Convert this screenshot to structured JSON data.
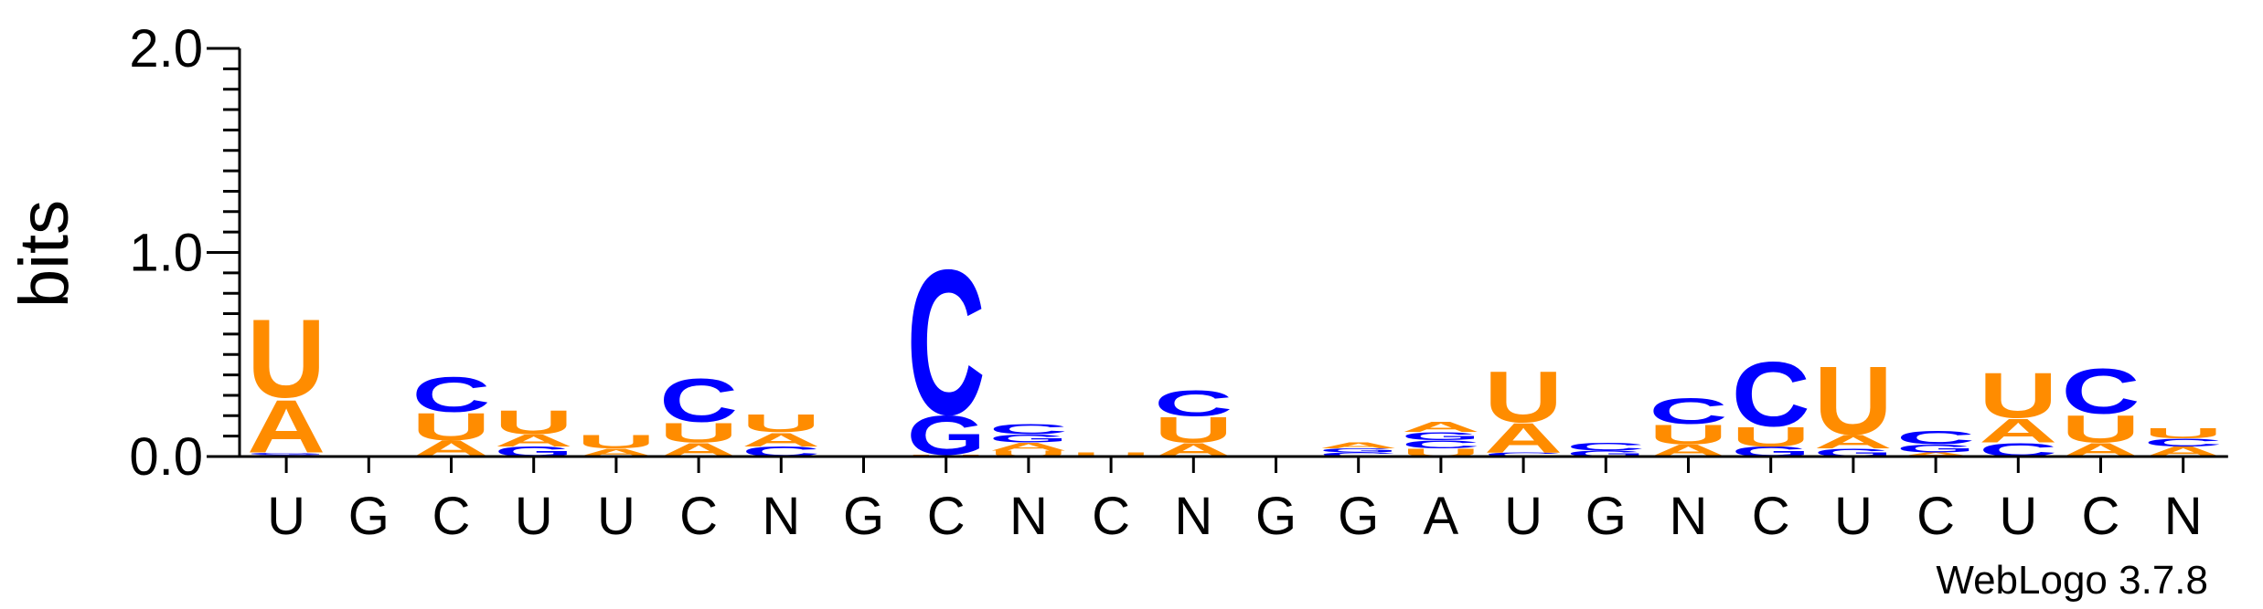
{
  "chart_data": {
    "type": "sequence-logo",
    "ylabel": "bits",
    "ylim": [
      0,
      2.0
    ],
    "yticks": [
      {
        "value": 0.0,
        "label": "0.0"
      },
      {
        "value": 1.0,
        "label": "1.0"
      },
      {
        "value": 2.0,
        "label": "2.0"
      }
    ],
    "colors": {
      "U": "#ff8c00",
      "A": "#ff8c00",
      "C": "#0000ff",
      "G": "#0000ff"
    },
    "credit": "WebLogo 3.7.8",
    "positions": [
      {
        "label": "U",
        "stack": [
          {
            "l": "C",
            "h": 0.01
          },
          {
            "l": "G",
            "h": 0.01
          },
          {
            "l": "A",
            "h": 0.27
          },
          {
            "l": "U",
            "h": 0.4
          }
        ]
      },
      {
        "label": "G",
        "stack": []
      },
      {
        "label": "C",
        "stack": [
          {
            "l": "A",
            "h": 0.08
          },
          {
            "l": "U",
            "h": 0.14
          },
          {
            "l": "C",
            "h": 0.18
          }
        ]
      },
      {
        "label": "U",
        "stack": [
          {
            "l": "G",
            "h": 0.05
          },
          {
            "l": "A",
            "h": 0.06
          },
          {
            "l": "U",
            "h": 0.12
          }
        ]
      },
      {
        "label": "U",
        "stack": [
          {
            "l": "A",
            "h": 0.04
          },
          {
            "l": "U",
            "h": 0.07
          }
        ]
      },
      {
        "label": "C",
        "stack": [
          {
            "l": "A",
            "h": 0.07
          },
          {
            "l": "U",
            "h": 0.1
          },
          {
            "l": "C",
            "h": 0.22
          }
        ]
      },
      {
        "label": "N",
        "stack": [
          {
            "l": "C",
            "h": 0.05
          },
          {
            "l": "A",
            "h": 0.07
          },
          {
            "l": "U",
            "h": 0.09
          }
        ]
      },
      {
        "label": "G",
        "stack": []
      },
      {
        "label": "C",
        "stack": [
          {
            "l": "U",
            "h": 0.01
          },
          {
            "l": "G",
            "h": 0.2
          },
          {
            "l": "C",
            "h": 0.74
          }
        ]
      },
      {
        "label": "N",
        "stack": [
          {
            "l": "U",
            "h": 0.03
          },
          {
            "l": "A",
            "h": 0.04
          },
          {
            "l": "G",
            "h": 0.04
          },
          {
            "l": "C",
            "h": 0.05
          }
        ]
      },
      {
        "label": "C",
        "stack": [
          {
            "l": "U",
            "h": 0.02
          }
        ]
      },
      {
        "label": "N",
        "stack": [
          {
            "l": "A",
            "h": 0.07
          },
          {
            "l": "U",
            "h": 0.13
          },
          {
            "l": "C",
            "h": 0.13
          }
        ]
      },
      {
        "label": "G",
        "stack": []
      },
      {
        "label": "G",
        "stack": [
          {
            "l": "C",
            "h": 0.02
          },
          {
            "l": "G",
            "h": 0.02
          },
          {
            "l": "A",
            "h": 0.03
          }
        ]
      },
      {
        "label": "A",
        "stack": [
          {
            "l": "U",
            "h": 0.04
          },
          {
            "l": "C",
            "h": 0.04
          },
          {
            "l": "G",
            "h": 0.04
          },
          {
            "l": "A",
            "h": 0.05
          }
        ]
      },
      {
        "label": "U",
        "stack": [
          {
            "l": "C",
            "h": 0.02
          },
          {
            "l": "A",
            "h": 0.15
          },
          {
            "l": "U",
            "h": 0.26
          }
        ]
      },
      {
        "label": "G",
        "stack": [
          {
            "l": "G",
            "h": 0.03
          },
          {
            "l": "C",
            "h": 0.04
          }
        ]
      },
      {
        "label": "N",
        "stack": [
          {
            "l": "A",
            "h": 0.06
          },
          {
            "l": "U",
            "h": 0.1
          },
          {
            "l": "C",
            "h": 0.13
          }
        ]
      },
      {
        "label": "C",
        "stack": [
          {
            "l": "G",
            "h": 0.05
          },
          {
            "l": "U",
            "h": 0.1
          },
          {
            "l": "C",
            "h": 0.33
          }
        ]
      },
      {
        "label": "U",
        "stack": [
          {
            "l": "G",
            "h": 0.04
          },
          {
            "l": "A",
            "h": 0.07
          },
          {
            "l": "U",
            "h": 0.35
          }
        ]
      },
      {
        "label": "C",
        "stack": [
          {
            "l": "A",
            "h": 0.02
          },
          {
            "l": "G",
            "h": 0.04
          },
          {
            "l": "C",
            "h": 0.07
          }
        ]
      },
      {
        "label": "U",
        "stack": [
          {
            "l": "C",
            "h": 0.07
          },
          {
            "l": "A",
            "h": 0.12
          },
          {
            "l": "U",
            "h": 0.23
          }
        ]
      },
      {
        "label": "C",
        "stack": [
          {
            "l": "A",
            "h": 0.07
          },
          {
            "l": "U",
            "h": 0.14
          },
          {
            "l": "C",
            "h": 0.23
          }
        ]
      },
      {
        "label": "N",
        "stack": [
          {
            "l": "A",
            "h": 0.05
          },
          {
            "l": "C",
            "h": 0.04
          },
          {
            "l": "U",
            "h": 0.05
          }
        ]
      }
    ]
  }
}
